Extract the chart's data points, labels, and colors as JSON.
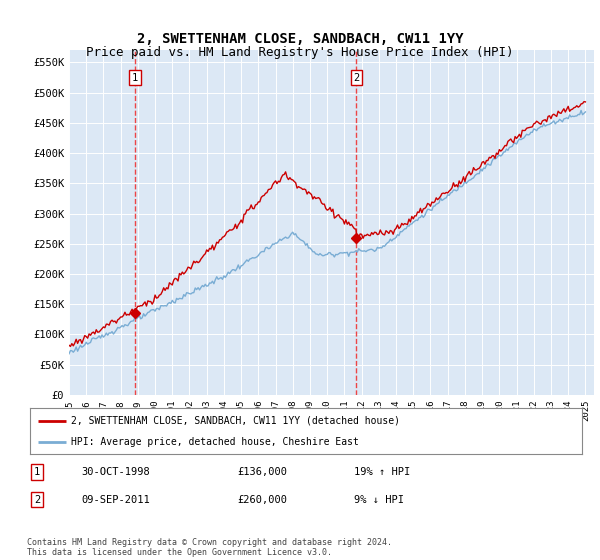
{
  "title": "2, SWETTENHAM CLOSE, SANDBACH, CW11 1YY",
  "subtitle": "Price paid vs. HM Land Registry's House Price Index (HPI)",
  "ylabel_ticks": [
    "£0",
    "£50K",
    "£100K",
    "£150K",
    "£200K",
    "£250K",
    "£300K",
    "£350K",
    "£400K",
    "£450K",
    "£500K",
    "£550K"
  ],
  "ytick_values": [
    0,
    50000,
    100000,
    150000,
    200000,
    250000,
    300000,
    350000,
    400000,
    450000,
    500000,
    550000
  ],
  "ylim": [
    0,
    570000
  ],
  "xlim_start": 1995.0,
  "xlim_end": 2025.5,
  "sale1_x": 1998.83,
  "sale1_y": 136000,
  "sale1_label": "1",
  "sale2_x": 2011.69,
  "sale2_y": 260000,
  "sale2_label": "2",
  "red_line_color": "#cc0000",
  "blue_line_color": "#7aadd4",
  "vline_color": "#ee3333",
  "plot_bg_color": "#dce8f5",
  "grid_color": "#ffffff",
  "legend_label_red": "2, SWETTENHAM CLOSE, SANDBACH, CW11 1YY (detached house)",
  "legend_label_blue": "HPI: Average price, detached house, Cheshire East",
  "table_row1": [
    "1",
    "30-OCT-1998",
    "£136,000",
    "19% ↑ HPI"
  ],
  "table_row2": [
    "2",
    "09-SEP-2011",
    "£260,000",
    "9% ↓ HPI"
  ],
  "footnote": "Contains HM Land Registry data © Crown copyright and database right 2024.\nThis data is licensed under the Open Government Licence v3.0.",
  "title_fontsize": 10,
  "subtitle_fontsize": 9
}
